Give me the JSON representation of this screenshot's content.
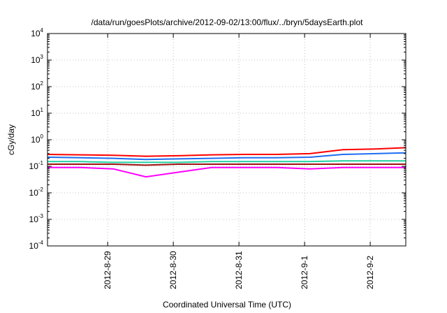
{
  "chart_data": {
    "type": "line",
    "title": "/data/run/goesPlots/archive/2012-09-02/13:00/flux/../bryn/5daysEarth.plot",
    "xlabel": "Coordinated Universal Time (UTC)",
    "ylabel": "cGy/day",
    "yscale": "log",
    "ylim": [
      0.0001,
      10000
    ],
    "y_ticks": [
      {
        "base": "10",
        "exp": "-4",
        "value": 0.0001
      },
      {
        "base": "10",
        "exp": "-3",
        "value": 0.001
      },
      {
        "base": "10",
        "exp": "-2",
        "value": 0.01
      },
      {
        "base": "10",
        "exp": "-1",
        "value": 0.1
      },
      {
        "base": "10",
        "exp": "0",
        "value": 1
      },
      {
        "base": "10",
        "exp": "1",
        "value": 10
      },
      {
        "base": "10",
        "exp": "2",
        "value": 100
      },
      {
        "base": "10",
        "exp": "3",
        "value": 1000
      },
      {
        "base": "10",
        "exp": "4",
        "value": 10000
      }
    ],
    "xlim": [
      "2012-08-28 02:00",
      "2012-09-02 13:00"
    ],
    "x_ticks": [
      "2012-8-29",
      "2012-8-30",
      "2012-8-31",
      "2012-9-1",
      "2012-9-2"
    ],
    "grid": true,
    "legend": "none",
    "x": [
      "2012-08-28 02:00",
      "2012-08-28 14:00",
      "2012-08-29 02:00",
      "2012-08-29 14:00",
      "2012-08-30 02:00",
      "2012-08-30 14:00",
      "2012-08-31 02:00",
      "2012-08-31 14:00",
      "2012-09-01 02:00",
      "2012-09-01 14:00",
      "2012-09-02 02:00",
      "2012-09-02 13:00"
    ],
    "series": [
      {
        "color": "#ff0000",
        "values": [
          0.28,
          0.27,
          0.26,
          0.24,
          0.25,
          0.27,
          0.28,
          0.28,
          0.3,
          0.42,
          0.45,
          0.5
        ]
      },
      {
        "color": "#1e6ef0",
        "values": [
          0.22,
          0.21,
          0.2,
          0.18,
          0.19,
          0.2,
          0.21,
          0.21,
          0.22,
          0.28,
          0.3,
          0.32
        ]
      },
      {
        "color": "#20d0a0",
        "values": [
          0.15,
          0.15,
          0.14,
          0.14,
          0.14,
          0.15,
          0.15,
          0.15,
          0.15,
          0.16,
          0.16,
          0.16
        ]
      },
      {
        "color": "#a01010",
        "values": [
          0.12,
          0.12,
          0.12,
          0.11,
          0.12,
          0.12,
          0.12,
          0.12,
          0.12,
          0.12,
          0.12,
          0.12
        ]
      },
      {
        "color": "#ff00ff",
        "values": [
          0.09,
          0.09,
          0.08,
          0.04,
          0.06,
          0.09,
          0.09,
          0.09,
          0.08,
          0.09,
          0.09,
          0.09
        ]
      }
    ]
  }
}
